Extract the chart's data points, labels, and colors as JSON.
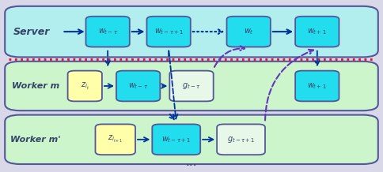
{
  "fig_width": 4.84,
  "fig_height": 2.18,
  "dpi": 100,
  "outer_bg": "#d8d8e8",
  "server_bg": "#b2eeee",
  "worker_bg": "#ccf5cc",
  "box_cyan": "#22ddee",
  "box_yellow": "#ffffaa",
  "border_color": "#555599",
  "arrow_dark": "#003399",
  "arrow_purple": "#6633bb",
  "dot_red": "#ee1111",
  "text_dark": "#334466",
  "server_label": "Server",
  "worker_m_label": "Worker m",
  "worker_mp_label": "Worker m'",
  "dots_label": "...",
  "server_boxes": [
    "$w_{t-\\tau}$",
    "$w_{t-\\tau+1}$",
    "$w_t$",
    "$w_{t+1}$"
  ],
  "worker_m_boxes": [
    "$z_{i_t}$",
    "$w_{t-\\tau}$",
    "$g_{t-\\tau}$",
    "$w_{t+1}$"
  ],
  "worker_mp_boxes": [
    "$z_{i_{t+1}}$",
    "$w_{t-\\tau+1}$",
    "$g_{t-\\tau+1}$"
  ]
}
